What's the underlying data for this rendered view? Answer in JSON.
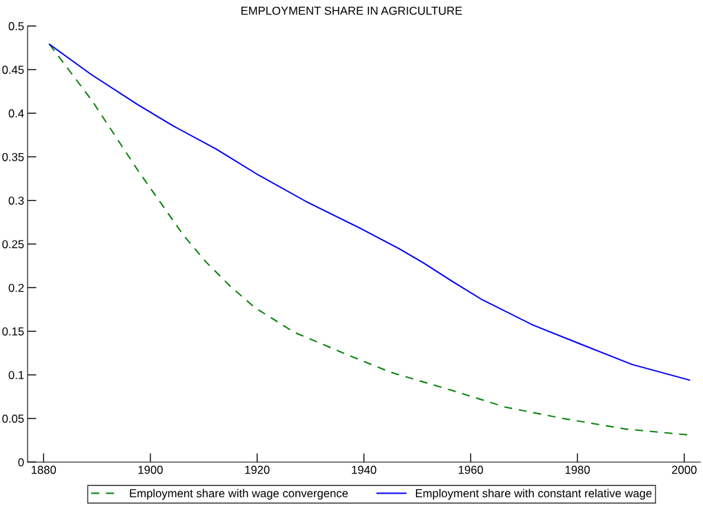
{
  "chart_data": {
    "type": "line",
    "title": "EMPLOYMENT SHARE IN AGRICULTURE",
    "xlim": [
      1877,
      2003
    ],
    "xticks": [
      1880,
      1900,
      1920,
      1940,
      1960,
      1980,
      2000
    ],
    "ylim": [
      0,
      0.5
    ],
    "yticks": [
      0,
      {
        "value": 0.05,
        "label": "0.05"
      },
      {
        "value": 0.1,
        "label": "0.1"
      },
      {
        "value": 0.15,
        "label": "0.15"
      },
      {
        "value": 0.2,
        "label": "0.2"
      },
      {
        "value": 0.25,
        "label": "0.25"
      },
      {
        "value": 0.3,
        "label": "0.3"
      },
      {
        "value": 0.35,
        "label": "0.35"
      },
      {
        "value": 0.4,
        "label": "0.4"
      },
      {
        "value": 0.45,
        "label": "0.45"
      },
      {
        "value": 0.5,
        "label": "0.5"
      }
    ],
    "grid": false,
    "legend": "bottom",
    "marker": "none",
    "series": [
      {
        "name": "Employment share with wage convergence",
        "color": "#008000",
        "line_style": "dashed",
        "x": [
          1881.1,
          1889.0,
          1897.6,
          1906.2,
          1910.5,
          1914.9,
          1919.6,
          1926.9,
          1937.7,
          1945.0,
          1956.6,
          1966.5,
          1977.3,
          1988.9,
          2001.0
        ],
        "values": [
          0.479,
          0.415,
          0.335,
          0.26,
          0.229,
          0.202,
          0.177,
          0.149,
          0.121,
          0.103,
          0.082,
          0.063,
          0.05,
          0.038,
          0.031
        ]
      },
      {
        "name": "Employment share with constant relative wage",
        "color": "#0000ff",
        "line_style": "solid",
        "x": [
          1881.1,
          1889.0,
          1897.6,
          1904.1,
          1912.3,
          1920.0,
          1929.1,
          1939.0,
          1946.5,
          1951.0,
          1956.6,
          1962.2,
          1971.7,
          1980.7,
          1990.2,
          2001.0
        ],
        "values": [
          0.479,
          0.444,
          0.41,
          0.386,
          0.359,
          0.33,
          0.299,
          0.269,
          0.245,
          0.229,
          0.207,
          0.186,
          0.157,
          0.135,
          0.112,
          0.094
        ]
      }
    ]
  }
}
